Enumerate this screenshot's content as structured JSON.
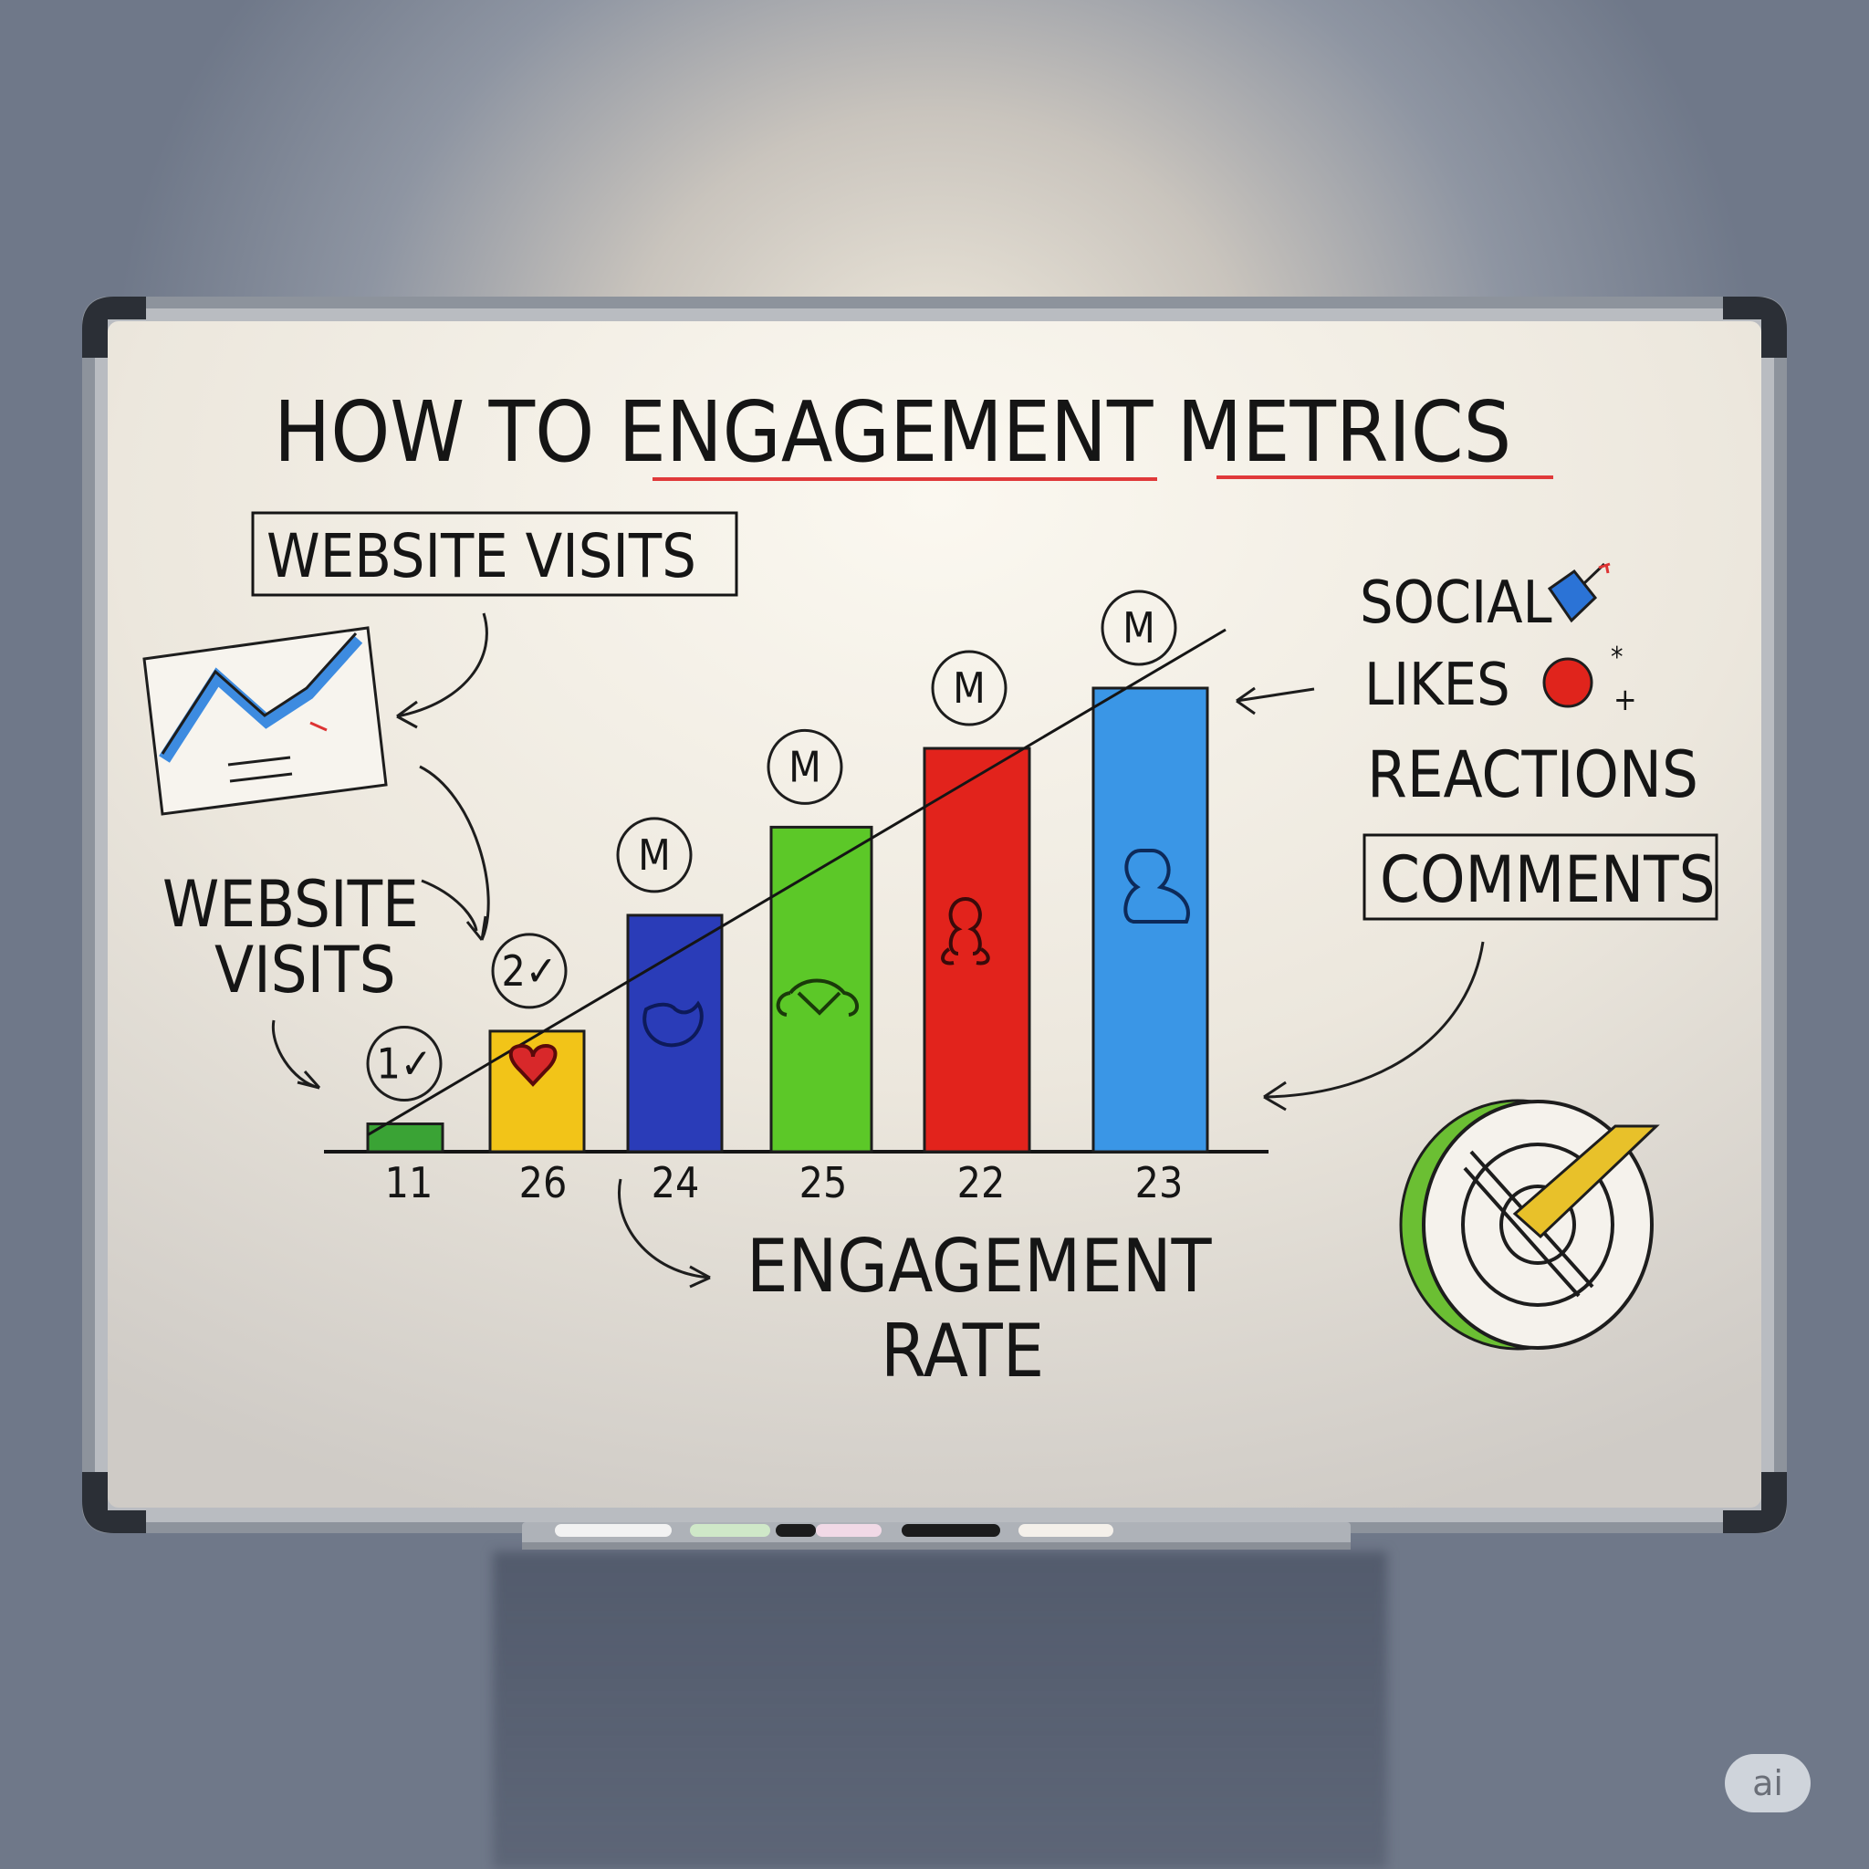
{
  "board": {
    "title": "HOW TO ENGAGEMENT METRICS",
    "top_label": "WEBSITE VISITS",
    "left_label_line1": "WEBSITE",
    "left_label_line2": "VISITS",
    "bottom_label_line1": "ENGAGEMENT",
    "bottom_label_line2": "RATE"
  },
  "legend": {
    "social": "SOCIAL",
    "likes": "LIKES",
    "reactions": "REACTIONS",
    "comments": "COMMENTS"
  },
  "badges": [
    "1✓",
    "2✓",
    "M",
    "M",
    "M",
    "M"
  ],
  "chart_data": {
    "type": "bar",
    "categories": [
      "11",
      "26",
      "24",
      "25",
      "22",
      "23"
    ],
    "values": [
      0.06,
      0.26,
      0.51,
      0.7,
      0.87,
      1.0
    ],
    "colors": [
      "#3aa335",
      "#f2c418",
      "#2a3cb8",
      "#5cc828",
      "#e2231c",
      "#3a96e6"
    ],
    "trend_line": true
  },
  "watermark": "ai",
  "colors": {
    "ink": "#151515",
    "underline": "#e0393a",
    "board": "#f6f3ec"
  },
  "icons": [
    "chart-sketch-icon",
    "heart-icon",
    "thumbs-up-icon",
    "handshake-icon",
    "people-icon",
    "person-icon",
    "target-check-icon",
    "pushpin-icon",
    "red-dot-icon"
  ]
}
